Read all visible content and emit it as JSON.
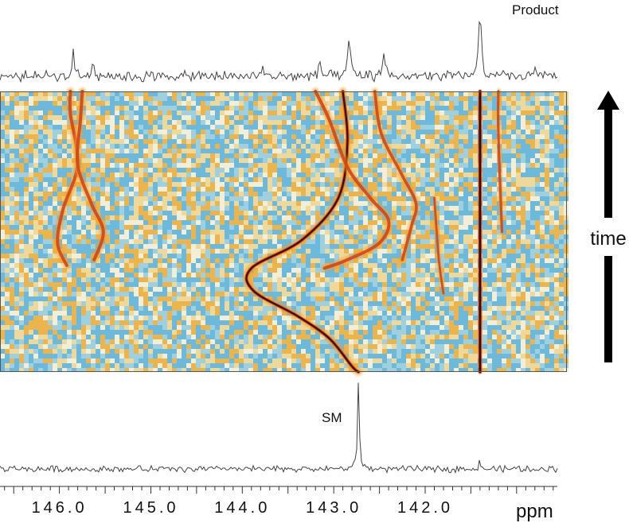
{
  "chart_data": {
    "type": "heatmap",
    "title": "",
    "xlabel": "ppm",
    "ylabel": "time",
    "x_axis_reversed": true,
    "xlim": [
      146.65,
      140.45
    ],
    "x_ticks": [
      146.0,
      145.0,
      144.0,
      143.0,
      142.0
    ],
    "x_tick_labels": [
      "146.0",
      "145.0",
      "144.0",
      "143.0",
      "142.0"
    ],
    "time_direction": "up",
    "top_spectrum": {
      "label": "Product",
      "peaks": [
        {
          "ppm": 145.85,
          "height": 0.3
        },
        {
          "ppm": 145.63,
          "height": 0.24
        },
        {
          "ppm": 143.78,
          "height": 0.12
        },
        {
          "ppm": 143.15,
          "height": 0.2
        },
        {
          "ppm": 142.83,
          "height": 0.55
        },
        {
          "ppm": 142.45,
          "height": 0.35
        },
        {
          "ppm": 141.4,
          "height": 1.0
        },
        {
          "ppm": 140.8,
          "height": 0.15
        }
      ]
    },
    "bottom_spectrum": {
      "label": "SM",
      "peaks": [
        {
          "ppm": 142.73,
          "height": 1.0
        },
        {
          "ppm": 141.4,
          "height": 0.1
        }
      ]
    },
    "traces": [
      {
        "intensity": 0.75,
        "path": [
          [
            145.88,
            1.0
          ],
          [
            145.88,
            0.92
          ],
          [
            145.8,
            0.74
          ],
          [
            145.96,
            0.58
          ],
          [
            146.02,
            0.46
          ],
          [
            145.92,
            0.38
          ]
        ]
      },
      {
        "intensity": 0.75,
        "path": [
          [
            145.75,
            1.0
          ],
          [
            145.77,
            0.9
          ],
          [
            145.8,
            0.74
          ],
          [
            145.65,
            0.6
          ],
          [
            145.52,
            0.5
          ],
          [
            145.62,
            0.4
          ]
        ]
      },
      {
        "intensity": 0.8,
        "path": [
          [
            142.9,
            1.0
          ],
          [
            142.85,
            0.82
          ],
          [
            142.95,
            0.62
          ],
          [
            143.35,
            0.47
          ],
          [
            143.9,
            0.37
          ],
          [
            143.88,
            0.29
          ],
          [
            143.4,
            0.2
          ],
          [
            143.05,
            0.12
          ],
          [
            142.8,
            0.02
          ],
          [
            142.73,
            0.0
          ]
        ]
      },
      {
        "intensity": 0.75,
        "path": [
          [
            143.2,
            1.0
          ],
          [
            143.05,
            0.9
          ],
          [
            142.85,
            0.73
          ],
          [
            142.6,
            0.62
          ],
          [
            142.4,
            0.54
          ],
          [
            142.5,
            0.46
          ],
          [
            142.85,
            0.4
          ],
          [
            143.1,
            0.37
          ]
        ]
      },
      {
        "intensity": 0.65,
        "path": [
          [
            142.55,
            1.0
          ],
          [
            142.48,
            0.85
          ],
          [
            142.25,
            0.7
          ],
          [
            142.1,
            0.6
          ],
          [
            142.15,
            0.52
          ],
          [
            142.25,
            0.4
          ]
        ]
      },
      {
        "intensity": 0.95,
        "path": [
          [
            141.4,
            1.0
          ],
          [
            141.4,
            0.5
          ],
          [
            141.4,
            0.0
          ]
        ]
      },
      {
        "intensity": 0.55,
        "path": [
          [
            141.2,
            1.0
          ],
          [
            141.2,
            0.85
          ],
          [
            141.16,
            0.5
          ]
        ]
      },
      {
        "intensity": 0.45,
        "path": [
          [
            141.9,
            0.62
          ],
          [
            141.85,
            0.4
          ],
          [
            141.8,
            0.28
          ]
        ]
      }
    ]
  }
}
